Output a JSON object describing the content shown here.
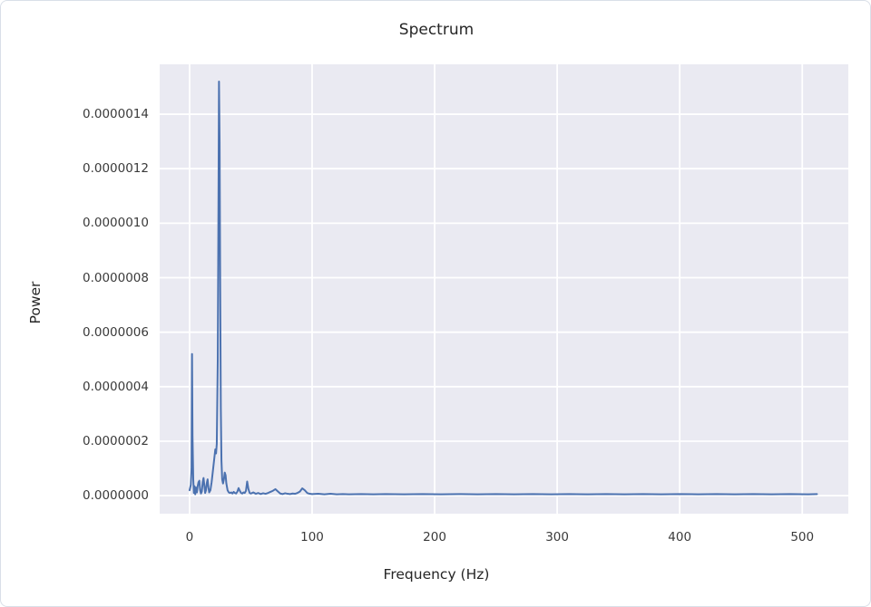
{
  "chart_data": {
    "type": "line",
    "title": "Spectrum",
    "xlabel": "Frequency (Hz)",
    "ylabel": "Power",
    "legend": null,
    "grid": true,
    "style": "seaborn-darkgrid",
    "plot_bg_color": "#eaeaf2",
    "grid_color": "#ffffff",
    "line_color": "#4c72b0",
    "text_color": "#262626",
    "xlim": [
      -24.4,
      537.6
    ],
    "ylim_micro": [
      -0.066,
      1.583
    ],
    "x_ticks": [
      0,
      100,
      200,
      300,
      400,
      500
    ],
    "x_tick_labels": [
      "0",
      "100",
      "200",
      "300",
      "400",
      "500"
    ],
    "y_ticks_micro": [
      0,
      0.2,
      0.4,
      0.6,
      0.8,
      1.0,
      1.2,
      1.4
    ],
    "y_tick_labels": [
      "0.0000000",
      "0.0000002",
      "0.0000004",
      "0.0000006",
      "0.0000008",
      "0.0000010",
      "0.0000012",
      "0.0000014"
    ],
    "y_unit_multiplier": 1e-06,
    "x_range_hz": [
      0,
      512
    ],
    "peaks": [
      {
        "freq_hz": 2,
        "power_micro": 0.52
      },
      {
        "freq_hz": 24,
        "power_micro": 1.52
      }
    ],
    "points_hz_micropower": [
      [
        0,
        0.02
      ],
      [
        1,
        0.04
      ],
      [
        1.6,
        0.1
      ],
      [
        2,
        0.52
      ],
      [
        2.4,
        0.22
      ],
      [
        3,
        0.06
      ],
      [
        3.5,
        0.01
      ],
      [
        4,
        0.035
      ],
      [
        4.6,
        0.005
      ],
      [
        5.2,
        0.03
      ],
      [
        6,
        0.012
      ],
      [
        6.6,
        0.035
      ],
      [
        7.3,
        0.05
      ],
      [
        8,
        0.055
      ],
      [
        8.6,
        0.02
      ],
      [
        9.3,
        0.008
      ],
      [
        10,
        0.015
      ],
      [
        10.7,
        0.05
      ],
      [
        11.4,
        0.065
      ],
      [
        12,
        0.04
      ],
      [
        12.7,
        0.01
      ],
      [
        13.4,
        0.02
      ],
      [
        14,
        0.045
      ],
      [
        14.7,
        0.06
      ],
      [
        15.4,
        0.03
      ],
      [
        16,
        0.012
      ],
      [
        17,
        0.02
      ],
      [
        18,
        0.05
      ],
      [
        19,
        0.09
      ],
      [
        20,
        0.13
      ],
      [
        21,
        0.17
      ],
      [
        21.6,
        0.155
      ],
      [
        22.2,
        0.19
      ],
      [
        23,
        0.5
      ],
      [
        23.6,
        1.1
      ],
      [
        24,
        1.52
      ],
      [
        24.5,
        1.3
      ],
      [
        25,
        0.75
      ],
      [
        25.5,
        0.32
      ],
      [
        26,
        0.13
      ],
      [
        26.6,
        0.06
      ],
      [
        27.3,
        0.045
      ],
      [
        28,
        0.06
      ],
      [
        28.7,
        0.085
      ],
      [
        29.4,
        0.075
      ],
      [
        30,
        0.045
      ],
      [
        31,
        0.02
      ],
      [
        32,
        0.012
      ],
      [
        33,
        0.01
      ],
      [
        34,
        0.012
      ],
      [
        35,
        0.008
      ],
      [
        36,
        0.014
      ],
      [
        37,
        0.01
      ],
      [
        38,
        0.008
      ],
      [
        39,
        0.015
      ],
      [
        40,
        0.028
      ],
      [
        41,
        0.018
      ],
      [
        42,
        0.01
      ],
      [
        43,
        0.008
      ],
      [
        44,
        0.012
      ],
      [
        45,
        0.01
      ],
      [
        46,
        0.018
      ],
      [
        47,
        0.052
      ],
      [
        48,
        0.025
      ],
      [
        49,
        0.01
      ],
      [
        50,
        0.008
      ],
      [
        52,
        0.012
      ],
      [
        54,
        0.007
      ],
      [
        56,
        0.01
      ],
      [
        58,
        0.006
      ],
      [
        60,
        0.009
      ],
      [
        62,
        0.007
      ],
      [
        64,
        0.01
      ],
      [
        66,
        0.014
      ],
      [
        68,
        0.018
      ],
      [
        70,
        0.024
      ],
      [
        72,
        0.016
      ],
      [
        74,
        0.008
      ],
      [
        76,
        0.006
      ],
      [
        78,
        0.009
      ],
      [
        80,
        0.007
      ],
      [
        82,
        0.006
      ],
      [
        84,
        0.008
      ],
      [
        86,
        0.007
      ],
      [
        88,
        0.01
      ],
      [
        90,
        0.015
      ],
      [
        92,
        0.027
      ],
      [
        94,
        0.02
      ],
      [
        96,
        0.01
      ],
      [
        98,
        0.007
      ],
      [
        100,
        0.006
      ],
      [
        105,
        0.007
      ],
      [
        110,
        0.005
      ],
      [
        115,
        0.007
      ],
      [
        120,
        0.005
      ],
      [
        125,
        0.006
      ],
      [
        130,
        0.005
      ],
      [
        140,
        0.006
      ],
      [
        150,
        0.005
      ],
      [
        160,
        0.006
      ],
      [
        175,
        0.005
      ],
      [
        190,
        0.006
      ],
      [
        205,
        0.005
      ],
      [
        220,
        0.006
      ],
      [
        235,
        0.005
      ],
      [
        250,
        0.006
      ],
      [
        265,
        0.005
      ],
      [
        280,
        0.006
      ],
      [
        295,
        0.005
      ],
      [
        310,
        0.006
      ],
      [
        325,
        0.005
      ],
      [
        340,
        0.006
      ],
      [
        355,
        0.005
      ],
      [
        370,
        0.006
      ],
      [
        385,
        0.005
      ],
      [
        400,
        0.006
      ],
      [
        415,
        0.005
      ],
      [
        430,
        0.006
      ],
      [
        445,
        0.005
      ],
      [
        460,
        0.006
      ],
      [
        475,
        0.005
      ],
      [
        490,
        0.006
      ],
      [
        505,
        0.005
      ],
      [
        512,
        0.006
      ]
    ]
  }
}
